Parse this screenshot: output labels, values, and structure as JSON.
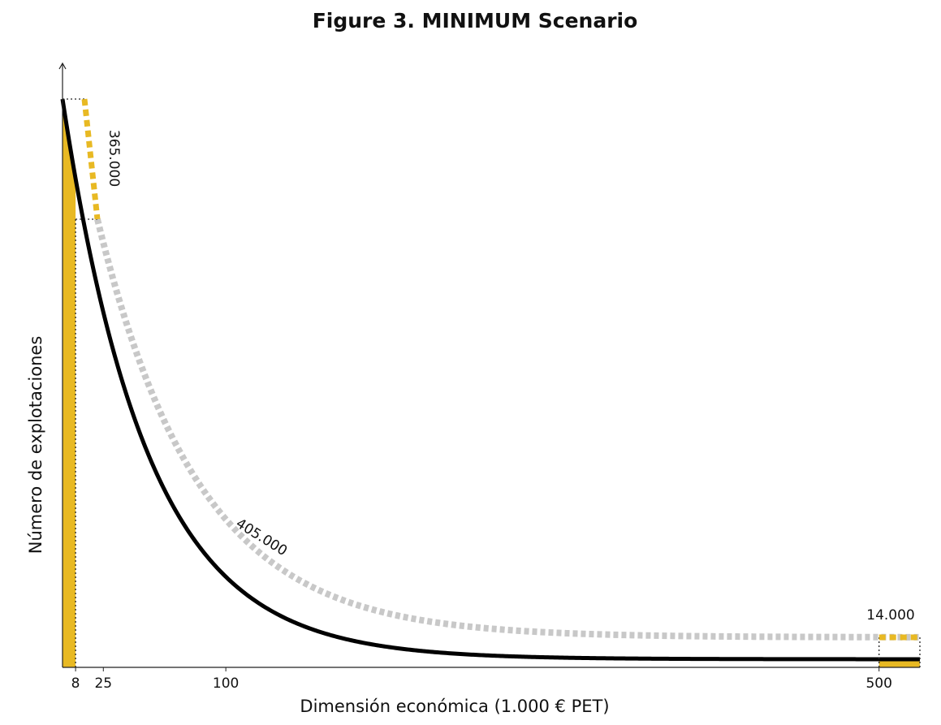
{
  "chart_data": {
    "type": "line",
    "title": "Figure 3. MINIMUM Scenario",
    "x_label": "Dimensión económica (1.000 € PET)",
    "y_label": "Número de explotaciones",
    "xlim": [
      0,
      525
    ],
    "xticks": [
      8,
      25,
      100,
      500
    ],
    "annotations": [
      "365.000",
      "405.000",
      "14.000"
    ]
  }
}
